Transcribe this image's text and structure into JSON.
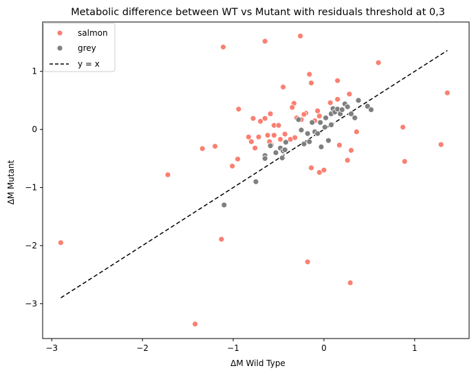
{
  "chart_data": {
    "type": "scatter",
    "title": "Metabolic difference between WT vs Mutant with residuals threshold at 0,3",
    "xlabel": "ΔM Wild Type",
    "ylabel": "ΔM Mutant",
    "xlim": [
      -3.1,
      1.6
    ],
    "ylim": [
      -3.6,
      1.85
    ],
    "xticks": [
      -3,
      -2,
      -1,
      0,
      1
    ],
    "yticks": [
      -3,
      -2,
      -1,
      0,
      1
    ],
    "xtick_labels": [
      "−3",
      "−2",
      "−1",
      "0",
      "1"
    ],
    "ytick_labels": [
      "−3",
      "−2",
      "−1",
      "0",
      "1"
    ],
    "grid": false,
    "legend_placement": "top-left",
    "legend": [
      "salmon",
      "grey",
      "y = x"
    ],
    "series": [
      {
        "name": "salmon",
        "color": "#fa8072",
        "points": [
          [
            -2.9,
            -1.95
          ],
          [
            -1.72,
            -0.78
          ],
          [
            -1.42,
            -3.35
          ],
          [
            -1.13,
            -1.89
          ],
          [
            -1.11,
            1.42
          ],
          [
            -0.65,
            1.52
          ],
          [
            -0.26,
            1.61
          ],
          [
            -0.16,
            0.95
          ],
          [
            0.15,
            0.84
          ],
          [
            0.6,
            1.15
          ],
          [
            1.36,
            0.63
          ],
          [
            -0.45,
            0.73
          ],
          [
            -0.14,
            0.8
          ],
          [
            -0.33,
            0.45
          ],
          [
            -0.94,
            0.35
          ],
          [
            -0.59,
            0.27
          ],
          [
            -0.7,
            0.14
          ],
          [
            -0.78,
            0.19
          ],
          [
            -0.65,
            0.19
          ],
          [
            -0.55,
            0.07
          ],
          [
            -0.5,
            0.07
          ],
          [
            -0.35,
            0.38
          ],
          [
            -0.3,
            0.2
          ],
          [
            -0.25,
            0.17
          ],
          [
            -0.2,
            0.28
          ],
          [
            -0.22,
            0.26
          ],
          [
            -0.1,
            0.15
          ],
          [
            -0.07,
            0.32
          ],
          [
            -0.05,
            0.23
          ],
          [
            0.07,
            0.46
          ],
          [
            0.15,
            0.52
          ],
          [
            0.28,
            0.61
          ],
          [
            0.36,
            -0.04
          ],
          [
            -1.34,
            -0.33
          ],
          [
            -1.2,
            -0.29
          ],
          [
            -1.01,
            -0.63
          ],
          [
            -0.95,
            -0.51
          ],
          [
            -0.83,
            -0.13
          ],
          [
            -0.8,
            -0.21
          ],
          [
            -0.76,
            -0.32
          ],
          [
            -0.72,
            -0.13
          ],
          [
            -0.62,
            -0.1
          ],
          [
            -0.58,
            -0.27
          ],
          [
            -0.55,
            -0.1
          ],
          [
            -0.6,
            -0.21
          ],
          [
            -0.48,
            -0.17
          ],
          [
            -0.43,
            -0.08
          ],
          [
            -0.37,
            -0.17
          ],
          [
            -0.32,
            -0.14
          ],
          [
            -0.14,
            -0.66
          ],
          [
            -0.05,
            -0.74
          ],
          [
            0.0,
            -0.7
          ],
          [
            0.26,
            -0.53
          ],
          [
            0.3,
            -0.36
          ],
          [
            0.17,
            -0.27
          ],
          [
            0.87,
            0.04
          ],
          [
            0.89,
            -0.55
          ],
          [
            1.29,
            -0.26
          ],
          [
            -0.18,
            -2.28
          ],
          [
            0.29,
            -2.64
          ]
        ]
      },
      {
        "name": "grey",
        "color": "#7f7f7f",
        "points": [
          [
            -1.1,
            -1.3
          ],
          [
            -0.75,
            -0.9
          ],
          [
            -0.65,
            -0.45
          ],
          [
            -0.65,
            -0.5
          ],
          [
            -0.59,
            -0.28
          ],
          [
            -0.53,
            -0.4
          ],
          [
            -0.48,
            -0.32
          ],
          [
            -0.46,
            -0.49
          ],
          [
            -0.45,
            -0.37
          ],
          [
            -0.43,
            -0.35
          ],
          [
            -0.42,
            -0.22
          ],
          [
            -0.25,
            -0.01
          ],
          [
            -0.22,
            -0.25
          ],
          [
            -0.18,
            -0.07
          ],
          [
            -0.16,
            -0.21
          ],
          [
            -0.13,
            0.12
          ],
          [
            -0.1,
            -0.04
          ],
          [
            -0.07,
            -0.07
          ],
          [
            -0.03,
            -0.3
          ],
          [
            0.01,
            0.04
          ],
          [
            0.02,
            0.2
          ],
          [
            0.05,
            -0.19
          ],
          [
            0.08,
            0.27
          ],
          [
            0.1,
            0.36
          ],
          [
            0.12,
            0.3
          ],
          [
            0.15,
            0.35
          ],
          [
            0.18,
            0.27
          ],
          [
            0.2,
            0.34
          ],
          [
            0.23,
            0.44
          ],
          [
            0.26,
            0.39
          ],
          [
            0.3,
            0.27
          ],
          [
            0.34,
            0.2
          ],
          [
            0.38,
            0.5
          ],
          [
            0.48,
            0.4
          ],
          [
            0.52,
            0.34
          ],
          [
            -0.04,
            0.12
          ],
          [
            0.08,
            0.08
          ],
          [
            -0.28,
            0.17
          ]
        ]
      }
    ],
    "reference_line": {
      "name": "y = x",
      "color": "#000000",
      "style": "dashed",
      "from": [
        -2.9,
        -2.9
      ],
      "to": [
        1.36,
        1.36
      ]
    }
  }
}
